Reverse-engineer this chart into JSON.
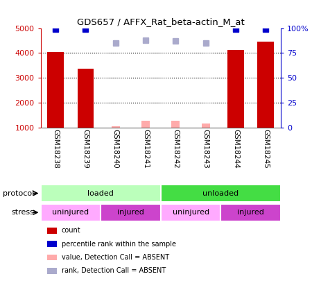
{
  "title": "GDS657 / AFFX_Rat_beta-actin_M_at",
  "samples": [
    "GSM18238",
    "GSM18239",
    "GSM18240",
    "GSM18241",
    "GSM18242",
    "GSM18243",
    "GSM18244",
    "GSM18245"
  ],
  "count_values": [
    4050,
    3370,
    null,
    null,
    null,
    null,
    4120,
    4450
  ],
  "count_absent_values": [
    null,
    null,
    1050,
    1280,
    1280,
    1150,
    null,
    null
  ],
  "percentile_values": [
    99,
    99,
    null,
    null,
    null,
    null,
    99,
    99
  ],
  "percentile_absent_values": [
    null,
    null,
    85,
    88,
    87,
    85,
    null,
    null
  ],
  "ylim_left": [
    1000,
    5000
  ],
  "ylim_right": [
    0,
    100
  ],
  "yticks_left": [
    1000,
    2000,
    3000,
    4000,
    5000
  ],
  "yticks_right": [
    0,
    25,
    50,
    75,
    100
  ],
  "ytick_labels_right": [
    "0",
    "25",
    "50",
    "75",
    "100%"
  ],
  "color_count": "#cc0000",
  "color_count_absent": "#ffaaaa",
  "color_percentile": "#0000cc",
  "color_percentile_absent": "#aaaacc",
  "protocol_labels": [
    "loaded",
    "unloaded"
  ],
  "protocol_ranges": [
    [
      0,
      4
    ],
    [
      4,
      8
    ]
  ],
  "protocol_colors": [
    "#bbffbb",
    "#44dd44"
  ],
  "stress_labels": [
    "uninjured",
    "injured",
    "uninjured",
    "injured"
  ],
  "stress_ranges": [
    [
      0,
      2
    ],
    [
      2,
      4
    ],
    [
      4,
      6
    ],
    [
      6,
      8
    ]
  ],
  "stress_colors": [
    "#ffaaff",
    "#cc44cc",
    "#ffaaff",
    "#cc44cc"
  ],
  "xlabel_area_color": "#cccccc",
  "background_color": "#ffffff",
  "legend_items": [
    [
      "#cc0000",
      "count"
    ],
    [
      "#0000cc",
      "percentile rank within the sample"
    ],
    [
      "#ffaaaa",
      "value, Detection Call = ABSENT"
    ],
    [
      "#aaaacc",
      "rank, Detection Call = ABSENT"
    ]
  ]
}
